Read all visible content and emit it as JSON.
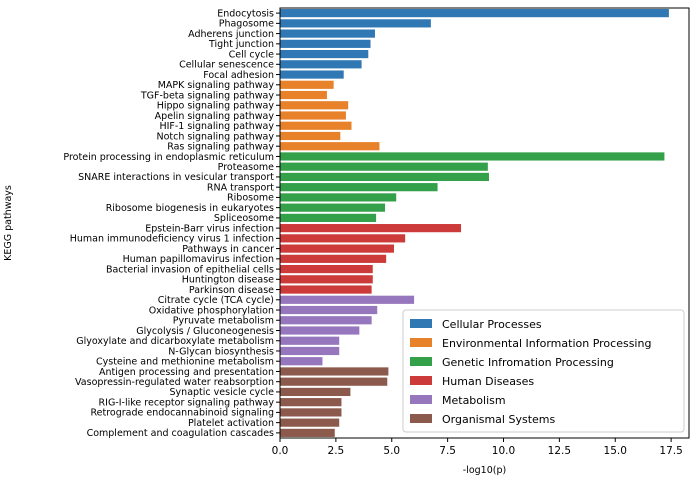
{
  "chart_data": {
    "type": "bar",
    "orientation": "horizontal",
    "title": "",
    "xlabel": "-log10(p)",
    "ylabel": "KEGG pathways",
    "xlim": [
      0,
      18.3
    ],
    "xticks": [
      0.0,
      2.5,
      5.0,
      7.5,
      10.0,
      12.5,
      15.0,
      17.5
    ],
    "xtick_labels": [
      "0.0",
      "2.5",
      "5.0",
      "7.5",
      "10.0",
      "12.5",
      "15.0",
      "17.5"
    ],
    "grid": false,
    "legend_position": "bottom-right",
    "legend": [
      {
        "name": "Cellular Processes",
        "color": "#2f78b4"
      },
      {
        "name": "Environmental Information Processing",
        "color": "#e8822a"
      },
      {
        "name": "Genetic Infromation Processing",
        "color": "#35a04a"
      },
      {
        "name": "Human Diseases",
        "color": "#cc3a3a"
      },
      {
        "name": "Metabolism",
        "color": "#9677bd"
      },
      {
        "name": "Organismal Systems",
        "color": "#8c5a4c"
      }
    ],
    "categories": [
      "Endocytosis",
      "Phagosome",
      "Adherens junction",
      "Tight junction",
      "Cell cycle",
      "Cellular senescence",
      "Focal adhesion",
      "MAPK signaling pathway",
      "TGF-beta signaling pathway",
      "Hippo signaling pathway",
      "Apelin signaling pathway",
      "HIF-1 signaling pathway",
      "Notch signaling pathway",
      "Ras signaling pathway",
      "Protein processing in endoplasmic reticulum",
      "Proteasome",
      "SNARE interactions in vesicular transport",
      "RNA transport",
      "Ribosome",
      "Ribosome biogenesis in eukaryotes",
      "Spliceosome",
      "Epstein-Barr virus infection",
      "Human immunodeficiency virus 1 infection",
      "Pathways in cancer",
      "Human papillomavirus infection",
      "Bacterial invasion of epithelial cells",
      "Huntington disease",
      "Parkinson disease",
      "Citrate cycle (TCA cycle)",
      "Oxidative phosphorylation",
      "Pyruvate metabolism",
      "Glycolysis / Gluconeogenesis",
      "Glyoxylate and dicarboxylate metabolism",
      "N-Glycan biosynthesis",
      "Cysteine and methionine metabolism",
      "Antigen processing and presentation",
      "Vasopressin-regulated water reabsorption",
      "Synaptic vesicle cycle",
      "RIG-I-like receptor signaling pathway",
      "Retrograde endocannabinoid signaling",
      "Platelet activation",
      "Complement and coagulation cascades"
    ],
    "values": [
      17.4,
      6.75,
      4.25,
      4.05,
      3.95,
      3.65,
      2.85,
      2.4,
      2.1,
      3.05,
      2.95,
      3.2,
      2.7,
      4.45,
      17.2,
      9.3,
      9.35,
      7.05,
      5.2,
      4.7,
      4.3,
      8.1,
      5.6,
      5.1,
      4.75,
      4.15,
      4.15,
      4.1,
      6.0,
      4.35,
      4.1,
      3.55,
      2.65,
      2.65,
      1.9,
      4.85,
      4.8,
      3.15,
      2.75,
      2.75,
      2.65,
      2.45
    ],
    "groups": [
      0,
      0,
      0,
      0,
      0,
      0,
      0,
      1,
      1,
      1,
      1,
      1,
      1,
      1,
      2,
      2,
      2,
      2,
      2,
      2,
      2,
      3,
      3,
      3,
      3,
      3,
      3,
      3,
      4,
      4,
      4,
      4,
      4,
      4,
      4,
      5,
      5,
      5,
      5,
      5,
      5,
      5
    ]
  }
}
